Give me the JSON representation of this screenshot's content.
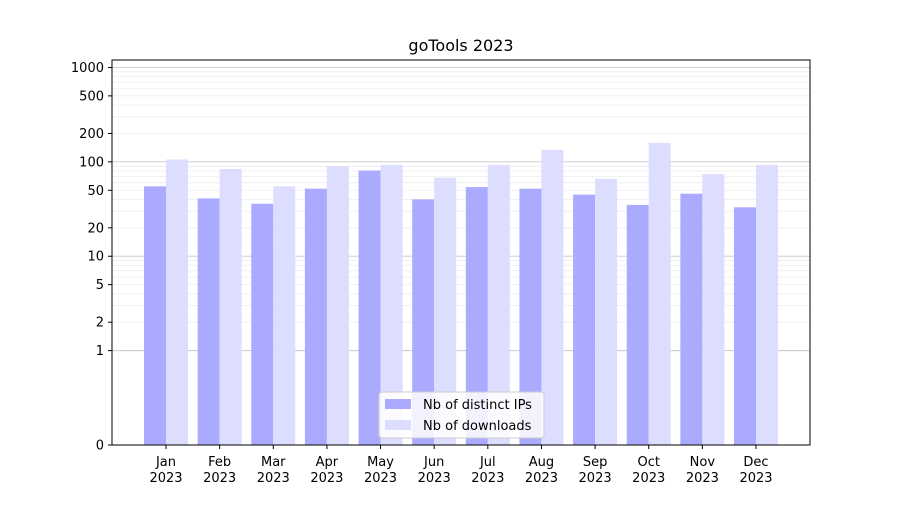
{
  "chart_data": {
    "type": "bar",
    "title": "goTools 2023",
    "xlabel": "",
    "ylabel": "",
    "y_scale": "symlog",
    "ylim": [
      0,
      1200
    ],
    "y_ticks": [
      0,
      1,
      2,
      5,
      10,
      20,
      50,
      100,
      200,
      500,
      1000
    ],
    "categories": [
      "Jan\n2023",
      "Feb\n2023",
      "Mar\n2023",
      "Apr\n2023",
      "May\n2023",
      "Jun\n2023",
      "Jul\n2023",
      "Aug\n2023",
      "Sep\n2023",
      "Oct\n2023",
      "Nov\n2023",
      "Dec\n2023"
    ],
    "series": [
      {
        "name": "Nb of distinct IPs",
        "color": "#aaaaff",
        "values": [
          55,
          41,
          36,
          52,
          81,
          40,
          54,
          52,
          45,
          35,
          46,
          33
        ]
      },
      {
        "name": "Nb of downloads",
        "color": "#ddddff",
        "values": [
          106,
          84,
          55,
          90,
          93,
          68,
          93,
          134,
          66,
          159,
          74,
          93
        ]
      }
    ],
    "legend_position": "lower center",
    "grid": "horizontal"
  }
}
